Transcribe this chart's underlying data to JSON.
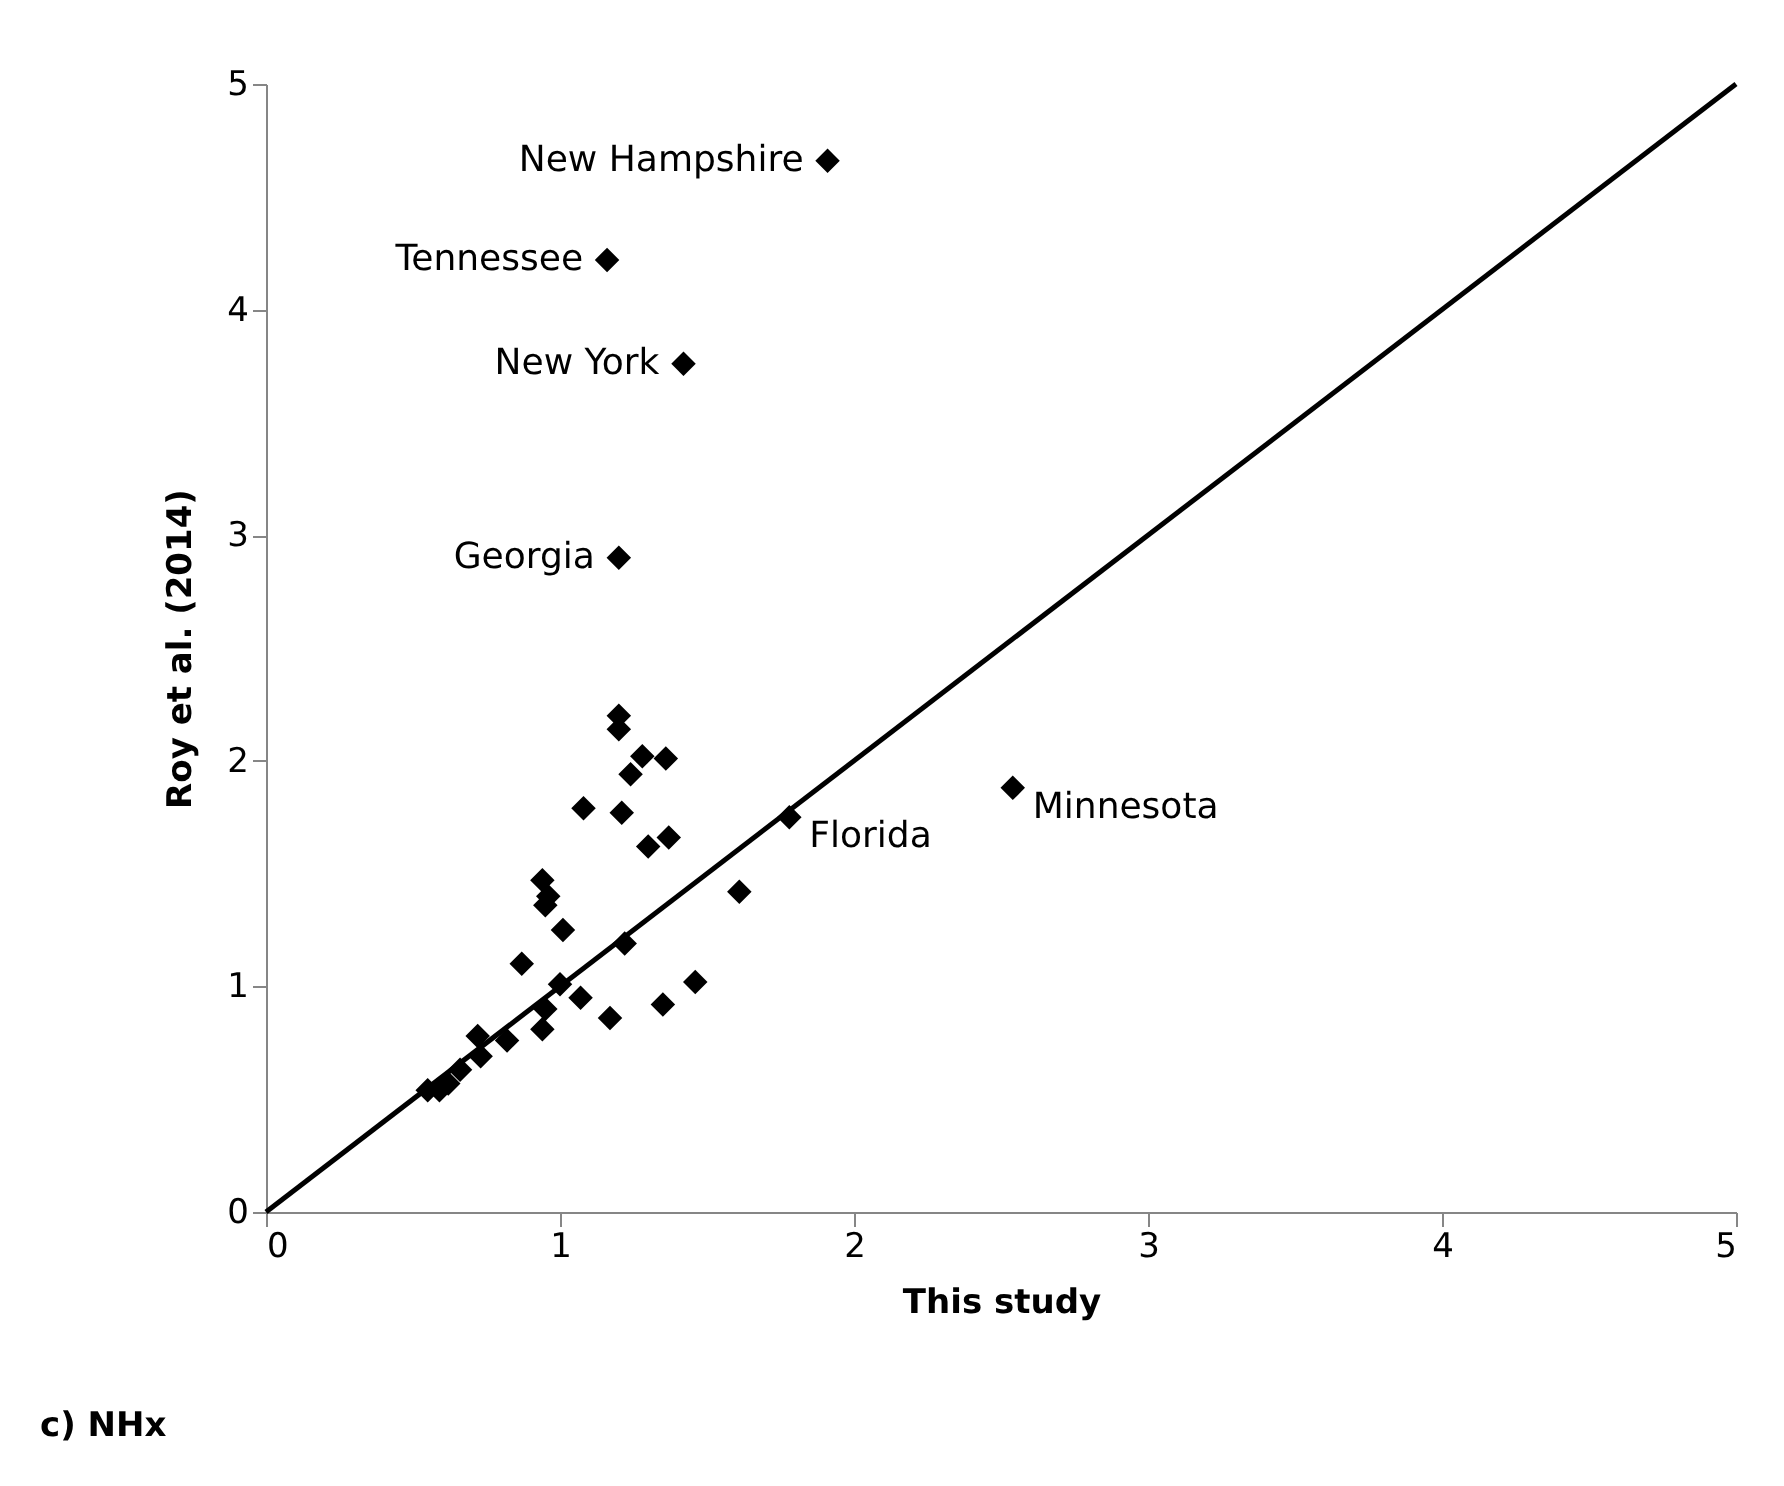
{
  "chart_data": {
    "type": "scatter",
    "xlabel": "This study",
    "ylabel": "Roy et al. (2014)",
    "xlim": [
      0,
      5
    ],
    "ylim": [
      0,
      5
    ],
    "xticks": [
      0,
      1,
      2,
      3,
      4,
      5
    ],
    "yticks": [
      0,
      1,
      2,
      3,
      4,
      5
    ],
    "grid": false,
    "marker": "diamond",
    "series": [
      {
        "color": "#000000",
        "x": [
          1.91,
          1.16,
          1.42,
          1.2,
          1.2,
          1.2,
          1.28,
          1.36,
          1.24,
          1.08,
          1.21,
          1.3,
          1.37,
          1.78,
          2.54,
          1.61,
          0.94,
          0.96,
          0.95,
          1.01,
          1.22,
          0.87,
          1.0,
          1.07,
          1.17,
          1.35,
          1.46,
          0.95,
          0.94,
          0.82,
          0.72,
          0.73,
          0.66,
          0.62,
          0.55,
          0.59
        ],
        "values": [
          4.66,
          4.22,
          3.76,
          2.9,
          2.2,
          2.14,
          2.02,
          2.01,
          1.94,
          1.79,
          1.77,
          1.62,
          1.66,
          1.75,
          1.88,
          1.42,
          1.47,
          1.4,
          1.36,
          1.25,
          1.19,
          1.1,
          1.01,
          0.95,
          0.86,
          0.92,
          1.02,
          0.9,
          0.81,
          0.76,
          0.78,
          0.69,
          0.63,
          0.57,
          0.54,
          0.54
        ]
      },
      {
        "type": "line",
        "marker": "none",
        "color": "#000000",
        "x": [
          0,
          5
        ],
        "values": [
          0,
          5
        ]
      }
    ],
    "annotations": [
      {
        "text": "New Hampshire",
        "x": 1.91,
        "y": 4.66
      },
      {
        "text": "Tennessee",
        "x": 1.16,
        "y": 4.22
      },
      {
        "text": "New York",
        "x": 1.42,
        "y": 3.76
      },
      {
        "text": "Georgia",
        "x": 1.2,
        "y": 2.9
      },
      {
        "text": "Minnesota",
        "x": 2.54,
        "y": 1.88
      },
      {
        "text": "Florida",
        "x": 1.78,
        "y": 1.75
      },
      "c) NHx"
    ]
  }
}
